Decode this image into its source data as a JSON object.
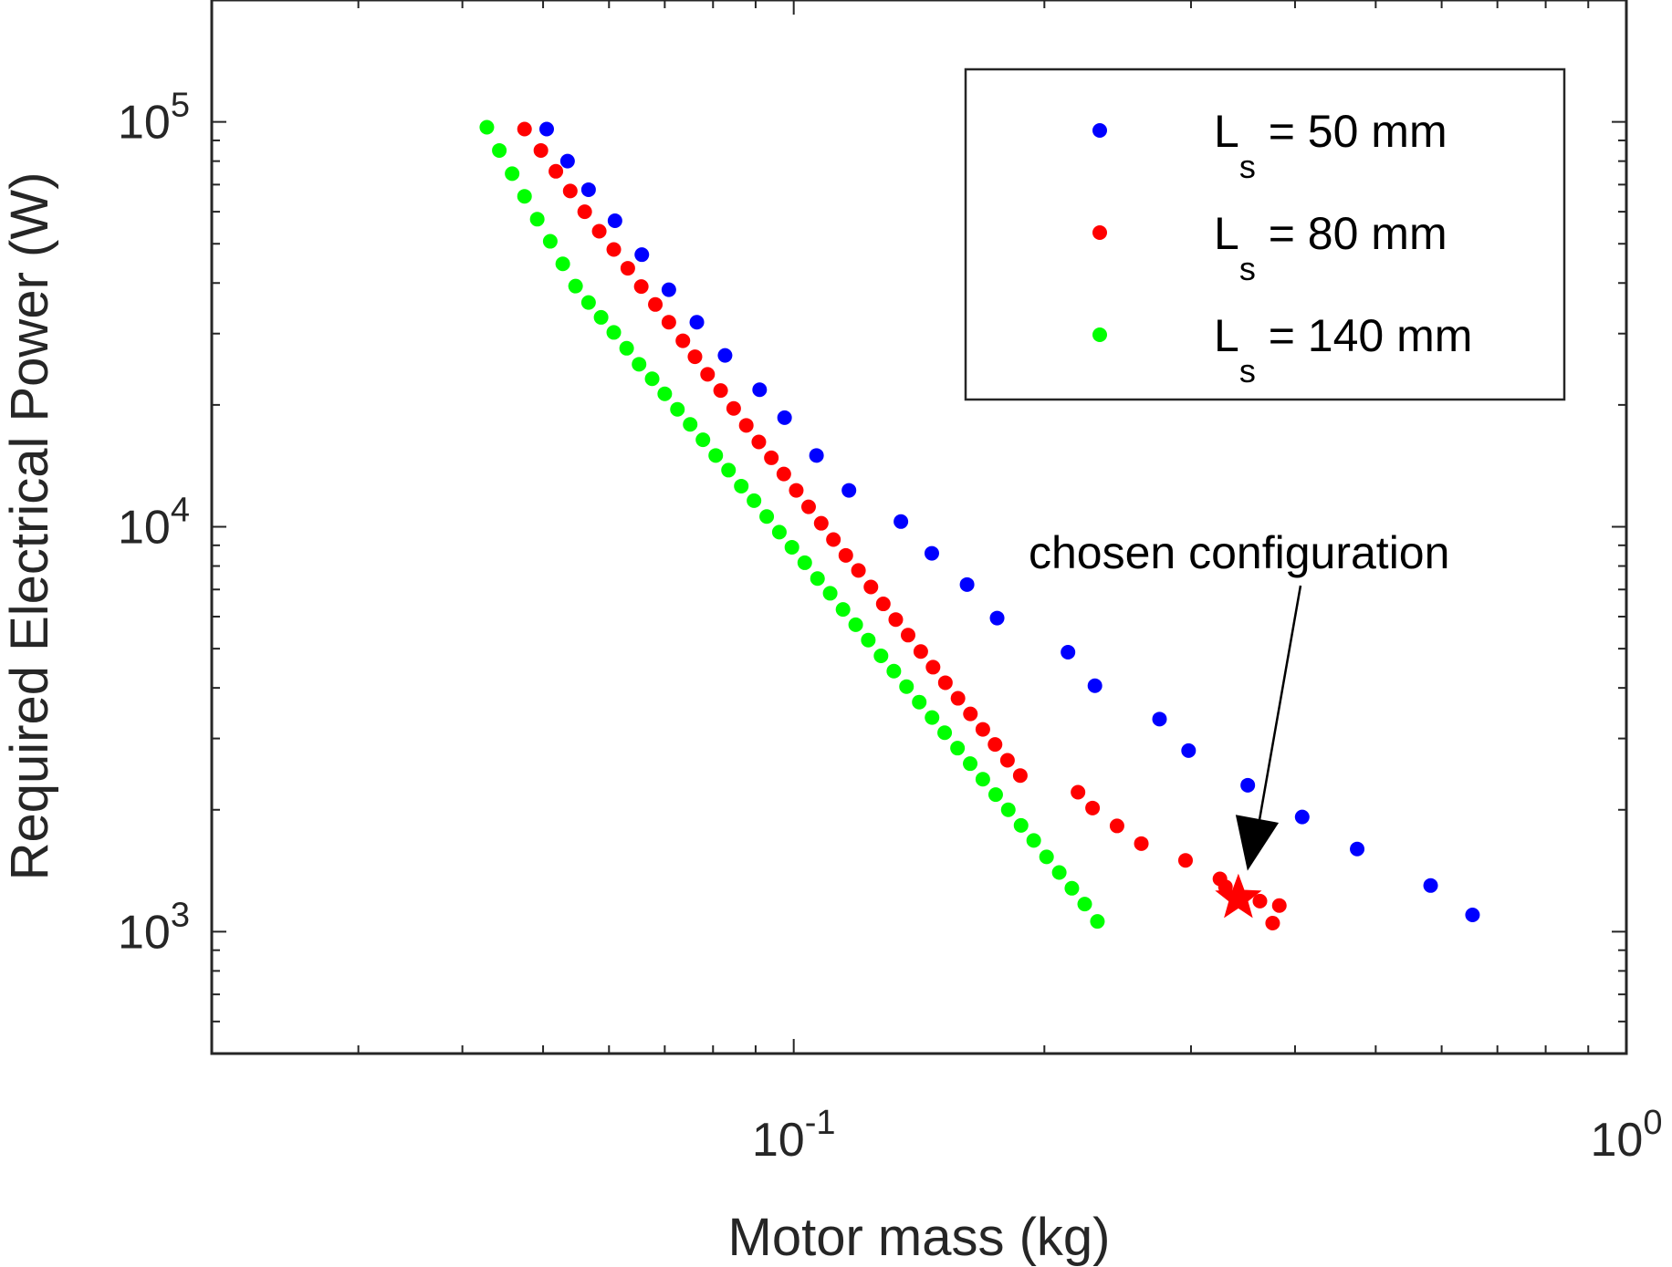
{
  "chart_data": {
    "type": "scatter",
    "title": "",
    "xlabel": "Motor mass (kg)",
    "ylabel": "Required Electrical Power (W)",
    "xscale": "log",
    "yscale": "log",
    "xlim": [
      0.02,
      1.0
    ],
    "ylim": [
      500,
      200000
    ],
    "x_ticks": [
      {
        "value": 0.1,
        "base": "10",
        "exp": "-1"
      },
      {
        "value": 1.0,
        "base": "10",
        "exp": "0"
      }
    ],
    "y_ticks": [
      {
        "value": 1000,
        "base": "10",
        "exp": "3"
      },
      {
        "value": 10000,
        "base": "10",
        "exp": "4"
      },
      {
        "value": 100000,
        "base": "10",
        "exp": "5"
      }
    ],
    "grid": false,
    "legend_position": "top-right",
    "series": [
      {
        "name_main": "L",
        "name_sub": "s",
        "name_rest": " = 50 mm",
        "color": "#0000ff",
        "points": [
          [
            0.0505,
            96000
          ],
          [
            0.0535,
            80000
          ],
          [
            0.0567,
            68000
          ],
          [
            0.061,
            57000
          ],
          [
            0.0657,
            47000
          ],
          [
            0.0708,
            38500
          ],
          [
            0.0765,
            32000
          ],
          [
            0.0827,
            26500
          ],
          [
            0.091,
            21800
          ],
          [
            0.0975,
            18600
          ],
          [
            0.1065,
            15000
          ],
          [
            0.1165,
            12300
          ],
          [
            0.1345,
            10300
          ],
          [
            0.1465,
            8600
          ],
          [
            0.1615,
            7200
          ],
          [
            0.1755,
            5950
          ],
          [
            0.2135,
            4900
          ],
          [
            0.23,
            4050
          ],
          [
            0.275,
            3350
          ],
          [
            0.298,
            2800
          ],
          [
            0.351,
            2300
          ],
          [
            0.408,
            1920
          ],
          [
            0.475,
            1600
          ],
          [
            0.582,
            1300
          ],
          [
            0.6535,
            1100
          ]
        ]
      },
      {
        "name_main": "L",
        "name_sub": "s",
        "name_rest": " = 80 mm",
        "color": "#ff0000",
        "points": [
          [
            0.0475,
            96000
          ],
          [
            0.0497,
            85000
          ],
          [
            0.0518,
            75500
          ],
          [
            0.0539,
            67500
          ],
          [
            0.0561,
            60000
          ],
          [
            0.0584,
            53700
          ],
          [
            0.0608,
            48400
          ],
          [
            0.0632,
            43500
          ],
          [
            0.0656,
            39200
          ],
          [
            0.0682,
            35400
          ],
          [
            0.0708,
            32000
          ],
          [
            0.0736,
            28800
          ],
          [
            0.0761,
            26300
          ],
          [
            0.0788,
            23800
          ],
          [
            0.0817,
            21700
          ],
          [
            0.0847,
            19600
          ],
          [
            0.0877,
            17800
          ],
          [
            0.0908,
            16200
          ],
          [
            0.094,
            14800
          ],
          [
            0.0973,
            13500
          ],
          [
            0.1007,
            12300
          ],
          [
            0.1042,
            11200
          ],
          [
            0.1079,
            10200
          ],
          [
            0.1116,
            9300
          ],
          [
            0.1155,
            8500
          ],
          [
            0.1196,
            7800
          ],
          [
            0.1238,
            7100
          ],
          [
            0.1281,
            6450
          ],
          [
            0.1326,
            5900
          ],
          [
            0.1372,
            5400
          ],
          [
            0.1421,
            4920
          ],
          [
            0.147,
            4500
          ],
          [
            0.1521,
            4120
          ],
          [
            0.1575,
            3770
          ],
          [
            0.163,
            3450
          ],
          [
            0.1687,
            3160
          ],
          [
            0.1745,
            2900
          ],
          [
            0.1806,
            2650
          ],
          [
            0.1871,
            2430
          ],
          [
            0.2195,
            2210
          ],
          [
            0.2285,
            2020
          ],
          [
            0.2445,
            1825
          ],
          [
            0.2615,
            1650
          ],
          [
            0.2955,
            1500
          ],
          [
            0.325,
            1350
          ],
          [
            0.33,
            1290
          ],
          [
            0.363,
            1190
          ],
          [
            0.383,
            1160
          ],
          [
            0.376,
            1050
          ]
        ]
      },
      {
        "name_main": "L",
        "name_sub": "s",
        "name_rest": " = 140 mm",
        "color": "#00ff00",
        "points": [
          [
            0.0428,
            97000
          ],
          [
            0.0443,
            85000
          ],
          [
            0.0459,
            74500
          ],
          [
            0.0475,
            65500
          ],
          [
            0.0492,
            57500
          ],
          [
            0.051,
            50700
          ],
          [
            0.0528,
            44600
          ],
          [
            0.0547,
            39300
          ],
          [
            0.0567,
            35800
          ],
          [
            0.0587,
            32900
          ],
          [
            0.0608,
            30200
          ],
          [
            0.063,
            27600
          ],
          [
            0.0652,
            25200
          ],
          [
            0.0676,
            23200
          ],
          [
            0.07,
            21300
          ],
          [
            0.0725,
            19500
          ],
          [
            0.0751,
            17900
          ],
          [
            0.0778,
            16400
          ],
          [
            0.0806,
            15000
          ],
          [
            0.0835,
            13800
          ],
          [
            0.0865,
            12600
          ],
          [
            0.0896,
            11600
          ],
          [
            0.0928,
            10600
          ],
          [
            0.0961,
            9700
          ],
          [
            0.0995,
            8900
          ],
          [
            0.1031,
            8150
          ],
          [
            0.1068,
            7450
          ],
          [
            0.1106,
            6850
          ],
          [
            0.1146,
            6250
          ],
          [
            0.1187,
            5730
          ],
          [
            0.1229,
            5250
          ],
          [
            0.1273,
            4800
          ],
          [
            0.1319,
            4400
          ],
          [
            0.1366,
            4030
          ],
          [
            0.1415,
            3690
          ],
          [
            0.1466,
            3380
          ],
          [
            0.1518,
            3100
          ],
          [
            0.1573,
            2840
          ],
          [
            0.1629,
            2600
          ],
          [
            0.1687,
            2380
          ],
          [
            0.1748,
            2180
          ],
          [
            0.181,
            2000
          ],
          [
            0.1875,
            1830
          ],
          [
            0.1942,
            1680
          ],
          [
            0.2012,
            1530
          ],
          [
            0.2084,
            1400
          ],
          [
            0.2158,
            1280
          ],
          [
            0.2236,
            1170
          ],
          [
            0.2316,
            1060
          ]
        ]
      }
    ],
    "highlight": {
      "label": "chosen configuration",
      "x": 0.342,
      "y": 1210,
      "color": "#ff0000",
      "marker": "star"
    }
  }
}
